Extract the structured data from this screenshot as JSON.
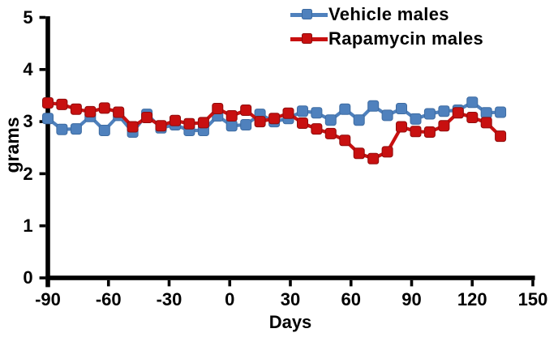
{
  "chart_data": {
    "type": "line",
    "title": "",
    "xlabel": "Days",
    "ylabel": "grams",
    "xlim": [
      -90,
      150
    ],
    "ylim": [
      0,
      5
    ],
    "x_ticks": [
      "-90",
      "-60",
      "-30",
      "0",
      "30",
      "60",
      "90",
      "120",
      "150"
    ],
    "x_tick_values": [
      -90,
      -60,
      -30,
      0,
      30,
      60,
      90,
      120,
      150
    ],
    "y_ticks": [
      "0",
      "1",
      "2",
      "3",
      "4",
      "5"
    ],
    "y_tick_values": [
      0,
      1,
      2,
      3,
      4,
      5
    ],
    "grid": false,
    "legend_position": "top-right",
    "x": [
      -90,
      -83,
      -76,
      -69,
      -62,
      -55,
      -48,
      -41,
      -34,
      -27,
      -20,
      -13,
      -6,
      1,
      8,
      15,
      22,
      29,
      36,
      43,
      50,
      57,
      64,
      71,
      78,
      85,
      92,
      99,
      106,
      113,
      120,
      127,
      134
    ],
    "series": [
      {
        "name": "Vehicle males",
        "color": "#4f81bd",
        "marker_border": "#3d6ba1",
        "marker": "square",
        "values": [
          3.06,
          2.85,
          2.86,
          3.1,
          2.83,
          3.12,
          2.8,
          3.14,
          2.88,
          2.94,
          2.83,
          2.83,
          3.11,
          2.92,
          2.94,
          3.14,
          3.0,
          3.06,
          3.2,
          3.17,
          3.03,
          3.24,
          3.03,
          3.3,
          3.12,
          3.25,
          3.05,
          3.15,
          3.2,
          3.22,
          3.37,
          3.17,
          3.18
        ]
      },
      {
        "name": "Rapamycin males",
        "color": "#c81010",
        "marker_border": "#8f0c0c",
        "marker": "square",
        "values": [
          3.36,
          3.33,
          3.24,
          3.19,
          3.26,
          3.18,
          2.9,
          3.08,
          2.92,
          3.02,
          2.96,
          2.98,
          3.25,
          3.11,
          3.22,
          3.0,
          3.06,
          3.16,
          2.97,
          2.86,
          2.77,
          2.64,
          2.39,
          2.29,
          2.42,
          2.9,
          2.81,
          2.8,
          2.92,
          3.17,
          3.08,
          2.98,
          2.72
        ]
      }
    ],
    "axis_color": "#000000"
  },
  "legend": {
    "items": [
      {
        "label": "Vehicle males"
      },
      {
        "label": "Rapamycin males"
      }
    ]
  }
}
